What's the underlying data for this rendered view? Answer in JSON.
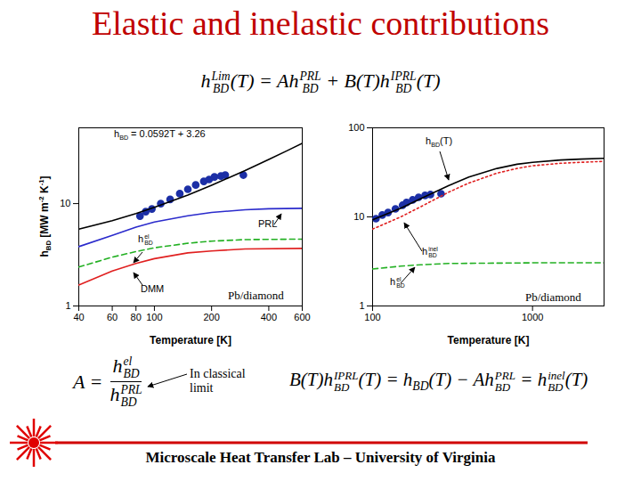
{
  "title": "Elastic and inelastic contributions",
  "equation": [
    {
      "t": "h",
      "sub": "BD",
      "sup": "Lim"
    },
    "(T) = A",
    {
      "t": "h",
      "sub": "BD",
      "sup": "PRL"
    },
    " + B(T)",
    {
      "t": "h",
      "sub": "BD",
      "sup": "IPRL"
    },
    "(T)"
  ],
  "chart_data": [
    {
      "type": "line",
      "log": true,
      "xlabel": "Temperature [K]",
      "ylabel": [
        {
          "t": "h",
          "sub": "BD"
        },
        {
          "t": " [MW m",
          "sup": "-2"
        },
        {
          "t": " K",
          "sup": "-1"
        },
        "]"
      ],
      "xlim": [
        40,
        600
      ],
      "xticks": [
        40,
        60,
        80,
        100,
        200,
        400,
        600
      ],
      "ylim": [
        1,
        55
      ],
      "yticks": [
        1,
        10
      ],
      "series": [
        {
          "type": "scatter",
          "marker": "circle",
          "color": "#1c2fa6",
          "x": [
            84,
            90,
            97,
            108,
            121,
            136,
            150,
            165,
            182,
            194,
            207,
            224,
            236,
            294
          ],
          "values": [
            7.55,
            8.35,
            8.87,
            10,
            11,
            12.5,
            13.8,
            15.2,
            16.5,
            17.2,
            18.2,
            18.6,
            19,
            19
          ]
        },
        {
          "type": "line",
          "line_style": "solid",
          "color": "#000000",
          "x": [
            40,
            60,
            80,
            100,
            150,
            200,
            300,
            400,
            500,
            600
          ],
          "values": [
            5.63,
            6.81,
            8.0,
            9.18,
            12.1,
            15.1,
            21.0,
            27.0,
            32.9,
            38.8
          ]
        },
        {
          "type": "line",
          "line_style": "solid",
          "color": "#2b2bcc",
          "name": "PRL",
          "x": [
            40,
            60,
            80,
            100,
            150,
            200,
            300,
            400,
            600
          ],
          "values": [
            3.8,
            4.9,
            5.9,
            6.6,
            7.6,
            8.2,
            8.7,
            8.9,
            9.0
          ]
        },
        {
          "type": "line",
          "line_style": "dashed",
          "color": "#22b022",
          "x": [
            40,
            60,
            80,
            100,
            150,
            200,
            300,
            600
          ],
          "values": [
            2.4,
            3.0,
            3.4,
            3.7,
            4.1,
            4.3,
            4.45,
            4.5
          ]
        },
        {
          "type": "line",
          "line_style": "solid",
          "color": "#e02020",
          "name": "DMM",
          "x": [
            40,
            60,
            80,
            100,
            150,
            200,
            300,
            600
          ],
          "values": [
            1.6,
            2.2,
            2.6,
            2.9,
            3.3,
            3.45,
            3.6,
            3.65
          ]
        }
      ],
      "annotations": [
        [
          {
            "t": "h",
            "sub": "BD"
          },
          " = 0.0592T + 3.26"
        ],
        [
          "PRL"
        ],
        [
          {
            "t": "h",
            "sub": "BD",
            "sup": "el"
          }
        ],
        [
          "DMM"
        ],
        [
          "Pb/diamond"
        ]
      ]
    },
    {
      "type": "line",
      "log": true,
      "xlabel": "Temperature [K]",
      "xlim": [
        100,
        2800
      ],
      "xticks": [
        100,
        1000
      ],
      "ylim": [
        1,
        100
      ],
      "yticks": [
        1,
        10,
        100
      ],
      "series": [
        {
          "type": "scatter",
          "marker": "circle",
          "color": "#1c2fa6",
          "x": [
            105,
            115,
            125,
            139,
            154,
            163,
            178,
            194,
            213,
            230,
            268
          ],
          "values": [
            9.55,
            10.5,
            11.2,
            12.3,
            13.5,
            14.5,
            15.5,
            16.6,
            17.4,
            17.8,
            18.2
          ]
        },
        {
          "type": "line",
          "line_style": "solid",
          "color": "#000000",
          "x": [
            100,
            150,
            200,
            300,
            400,
            600,
            800,
            1000,
            1500,
            2000,
            2800
          ],
          "values": [
            9.3,
            12.5,
            16,
            22.5,
            28,
            35,
            39,
            41,
            43.5,
            44.5,
            45.5
          ]
        },
        {
          "type": "line",
          "line_style": "dotted",
          "color": "#e02020",
          "x": [
            100,
            150,
            200,
            300,
            400,
            600,
            800,
            1000,
            1500,
            2000,
            2800
          ],
          "values": [
            7.3,
            10,
            13,
            19,
            24,
            31,
            35,
            37.5,
            40,
            41,
            42
          ]
        },
        {
          "type": "line",
          "line_style": "dashed",
          "color": "#22b022",
          "x": [
            100,
            150,
            200,
            300,
            1000,
            2800
          ],
          "values": [
            2.6,
            2.8,
            2.9,
            3.0,
            3.05,
            3.05
          ]
        }
      ],
      "annotations": [
        [
          {
            "t": "h",
            "sub": "BD"
          },
          "(T)"
        ],
        [
          {
            "t": "h",
            "sub": "BD",
            "sup": "inel"
          }
        ],
        [
          {
            "t": "h",
            "sub": "BD",
            "sup": "el"
          }
        ],
        [
          "Pb/diamond"
        ]
      ]
    }
  ],
  "definition_A": {
    "lhs": "A =",
    "numerator": [
      {
        "t": "h",
        "sub": "BD",
        "sup": "el"
      }
    ],
    "denominator": [
      {
        "t": "h",
        "sub": "BD",
        "sup": "PRL"
      }
    ]
  },
  "note": "In classical limit",
  "equation_B": [
    "B(T)",
    {
      "t": "h",
      "sub": "BD",
      "sup": "IPRL"
    },
    "(T) = ",
    {
      "t": "h",
      "sub": "BD"
    },
    "(T) − A",
    {
      "t": "h",
      "sub": "BD",
      "sup": "PRL"
    },
    " = ",
    {
      "t": "h",
      "sub": "BD",
      "sup": "inel"
    },
    "(T)"
  ],
  "footer": "Microscale Heat Transfer Lab – University of Virginia"
}
